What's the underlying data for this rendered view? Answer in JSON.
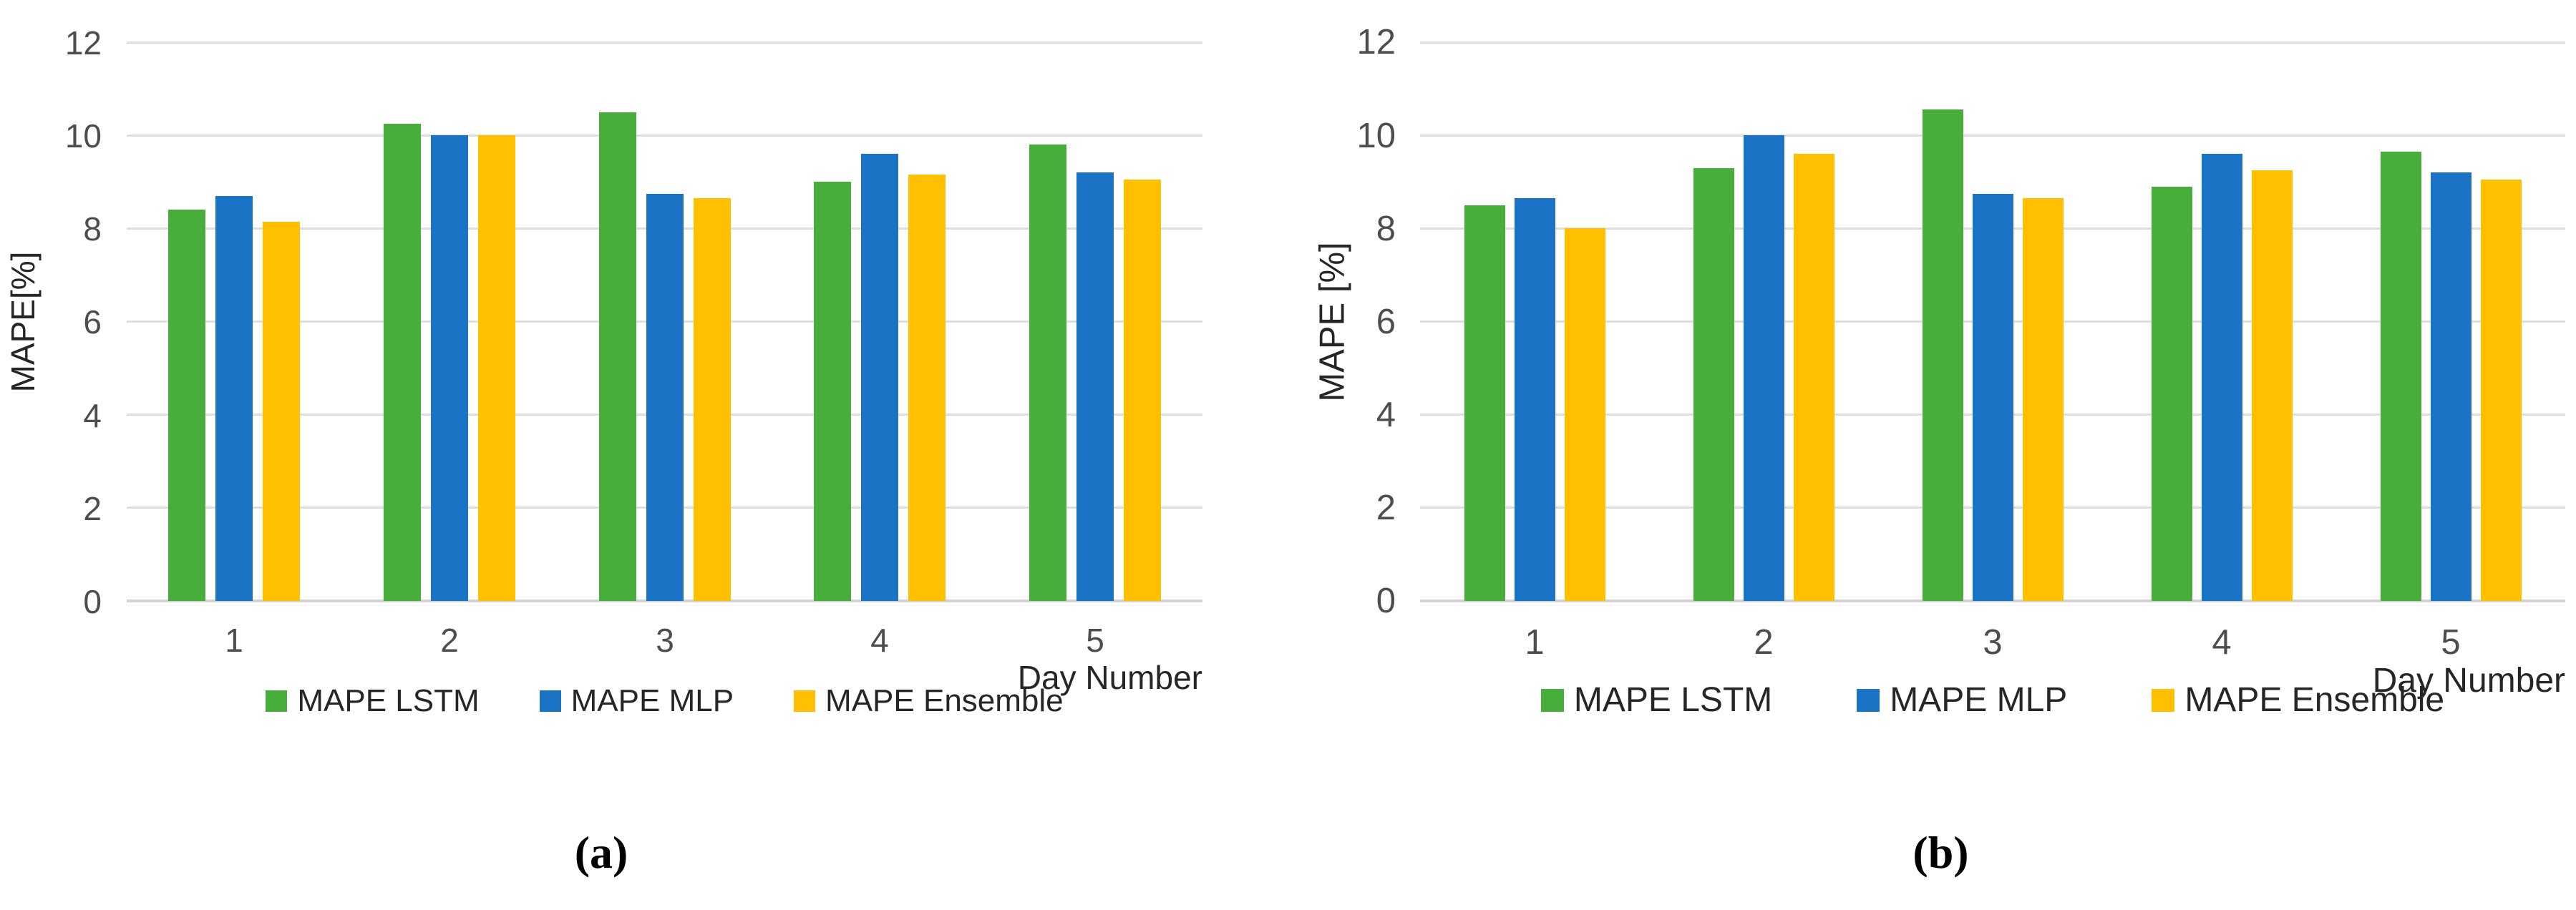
{
  "captions": {
    "a": "(a)",
    "b": "(b)"
  },
  "colors": {
    "lstm": "#47AD3B",
    "mlp": "#1B73C5",
    "ensemble": "#FFC000",
    "gridline": "#DEDEDE",
    "axis_line": "#D2D2D2",
    "tick_text": "#4D4D4D",
    "label_text": "#262626"
  },
  "chart_data": [
    {
      "id": "a",
      "type": "bar",
      "title": "",
      "xlabel": "Day Number",
      "ylabel": "MAPE[%]",
      "categories": [
        "1",
        "2",
        "3",
        "4",
        "5"
      ],
      "series": [
        {
          "name": "MAPE LSTM",
          "color_key": "lstm",
          "values": [
            8.4,
            10.25,
            10.5,
            9.0,
            9.8
          ]
        },
        {
          "name": "MAPE MLP",
          "color_key": "mlp",
          "values": [
            8.7,
            10.0,
            8.75,
            9.6,
            9.2
          ]
        },
        {
          "name": "MAPE Ensemble",
          "color_key": "ensemble",
          "values": [
            8.15,
            10.0,
            8.65,
            9.15,
            9.05
          ]
        }
      ],
      "ylim": [
        0,
        12
      ],
      "yticks": [
        0,
        2,
        4,
        6,
        8,
        10,
        12
      ],
      "grid": true,
      "legend_position": "bottom"
    },
    {
      "id": "b",
      "type": "bar",
      "title": "",
      "xlabel": "Day Number",
      "ylabel": "MAPE [%]",
      "categories": [
        "1",
        "2",
        "3",
        "4",
        "5"
      ],
      "series": [
        {
          "name": "MAPE LSTM",
          "color_key": "lstm",
          "values": [
            8.5,
            9.3,
            10.55,
            8.9,
            9.65
          ]
        },
        {
          "name": "MAPE MLP",
          "color_key": "mlp",
          "values": [
            8.65,
            10.0,
            8.75,
            9.6,
            9.2
          ]
        },
        {
          "name": "MAPE Ensemble",
          "color_key": "ensemble",
          "values": [
            8.0,
            9.6,
            8.65,
            9.25,
            9.05
          ]
        }
      ],
      "ylim": [
        0,
        12
      ],
      "yticks": [
        0,
        2,
        4,
        6,
        8,
        10,
        12
      ],
      "grid": true,
      "legend_position": "bottom"
    }
  ]
}
